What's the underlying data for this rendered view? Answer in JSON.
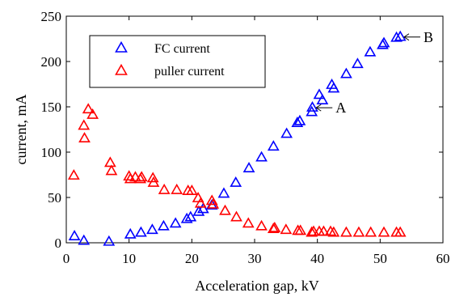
{
  "chart_data": {
    "type": "scatter",
    "title": "",
    "xlabel": "Acceleration gap, kV",
    "ylabel": "current, mA",
    "xlim": [
      0,
      60
    ],
    "ylim": [
      0,
      250
    ],
    "x_ticks": [
      0,
      10,
      20,
      30,
      40,
      50,
      60
    ],
    "y_ticks": [
      0,
      50,
      100,
      150,
      200,
      250
    ],
    "grid": false,
    "legend_position": "top-left",
    "series": [
      {
        "name": "FC current",
        "color": "#0000ff",
        "marker": "triangle-open",
        "points": [
          {
            "x": 1.3,
            "y": 7
          },
          {
            "x": 2.8,
            "y": 2
          },
          {
            "x": 6.8,
            "y": 1
          },
          {
            "x": 10.2,
            "y": 9
          },
          {
            "x": 11.9,
            "y": 11
          },
          {
            "x": 13.7,
            "y": 14
          },
          {
            "x": 15.5,
            "y": 18
          },
          {
            "x": 17.4,
            "y": 21
          },
          {
            "x": 19.2,
            "y": 26
          },
          {
            "x": 19.8,
            "y": 28
          },
          {
            "x": 21.1,
            "y": 34
          },
          {
            "x": 21.8,
            "y": 37
          },
          {
            "x": 23.2,
            "y": 41
          },
          {
            "x": 25.1,
            "y": 54
          },
          {
            "x": 27.0,
            "y": 66
          },
          {
            "x": 29.1,
            "y": 82
          },
          {
            "x": 31.1,
            "y": 94
          },
          {
            "x": 33.0,
            "y": 106
          },
          {
            "x": 35.1,
            "y": 120
          },
          {
            "x": 36.8,
            "y": 132
          },
          {
            "x": 37.2,
            "y": 134
          },
          {
            "x": 39.1,
            "y": 144
          },
          {
            "x": 39.2,
            "y": 149
          },
          {
            "x": 40.3,
            "y": 163
          },
          {
            "x": 40.8,
            "y": 157
          },
          {
            "x": 42.3,
            "y": 174
          },
          {
            "x": 42.6,
            "y": 170
          },
          {
            "x": 44.6,
            "y": 186
          },
          {
            "x": 46.4,
            "y": 197
          },
          {
            "x": 48.4,
            "y": 210
          },
          {
            "x": 50.4,
            "y": 218
          },
          {
            "x": 50.6,
            "y": 220
          },
          {
            "x": 52.6,
            "y": 226
          },
          {
            "x": 53.2,
            "y": 227
          }
        ]
      },
      {
        "name": "puller current",
        "color": "#ff0000",
        "marker": "triangle-open",
        "points": [
          {
            "x": 1.2,
            "y": 74
          },
          {
            "x": 2.8,
            "y": 129
          },
          {
            "x": 2.9,
            "y": 115
          },
          {
            "x": 3.5,
            "y": 147
          },
          {
            "x": 4.2,
            "y": 141
          },
          {
            "x": 7.0,
            "y": 88
          },
          {
            "x": 7.2,
            "y": 79
          },
          {
            "x": 10.0,
            "y": 73
          },
          {
            "x": 10.2,
            "y": 70
          },
          {
            "x": 11.0,
            "y": 72
          },
          {
            "x": 11.8,
            "y": 70
          },
          {
            "x": 12.0,
            "y": 72
          },
          {
            "x": 13.8,
            "y": 71
          },
          {
            "x": 13.9,
            "y": 66
          },
          {
            "x": 15.6,
            "y": 58
          },
          {
            "x": 17.6,
            "y": 58
          },
          {
            "x": 19.4,
            "y": 57
          },
          {
            "x": 20.0,
            "y": 57
          },
          {
            "x": 21.0,
            "y": 49
          },
          {
            "x": 21.4,
            "y": 43
          },
          {
            "x": 23.2,
            "y": 46
          },
          {
            "x": 23.4,
            "y": 42
          },
          {
            "x": 25.3,
            "y": 35
          },
          {
            "x": 27.1,
            "y": 28
          },
          {
            "x": 29.0,
            "y": 21
          },
          {
            "x": 31.1,
            "y": 18
          },
          {
            "x": 33.0,
            "y": 15
          },
          {
            "x": 33.2,
            "y": 16
          },
          {
            "x": 35.0,
            "y": 14
          },
          {
            "x": 36.9,
            "y": 13
          },
          {
            "x": 37.3,
            "y": 13
          },
          {
            "x": 39.1,
            "y": 11
          },
          {
            "x": 39.4,
            "y": 12
          },
          {
            "x": 40.3,
            "y": 12
          },
          {
            "x": 41.0,
            "y": 12
          },
          {
            "x": 42.1,
            "y": 12
          },
          {
            "x": 42.6,
            "y": 11
          },
          {
            "x": 44.6,
            "y": 11
          },
          {
            "x": 46.6,
            "y": 11
          },
          {
            "x": 48.5,
            "y": 11
          },
          {
            "x": 50.6,
            "y": 11
          },
          {
            "x": 52.6,
            "y": 11
          },
          {
            "x": 53.2,
            "y": 11
          }
        ]
      }
    ],
    "annotations": [
      {
        "text": "A",
        "x": 39.3,
        "y": 149
      },
      {
        "text": "B",
        "x": 53.3,
        "y": 227
      }
    ]
  }
}
